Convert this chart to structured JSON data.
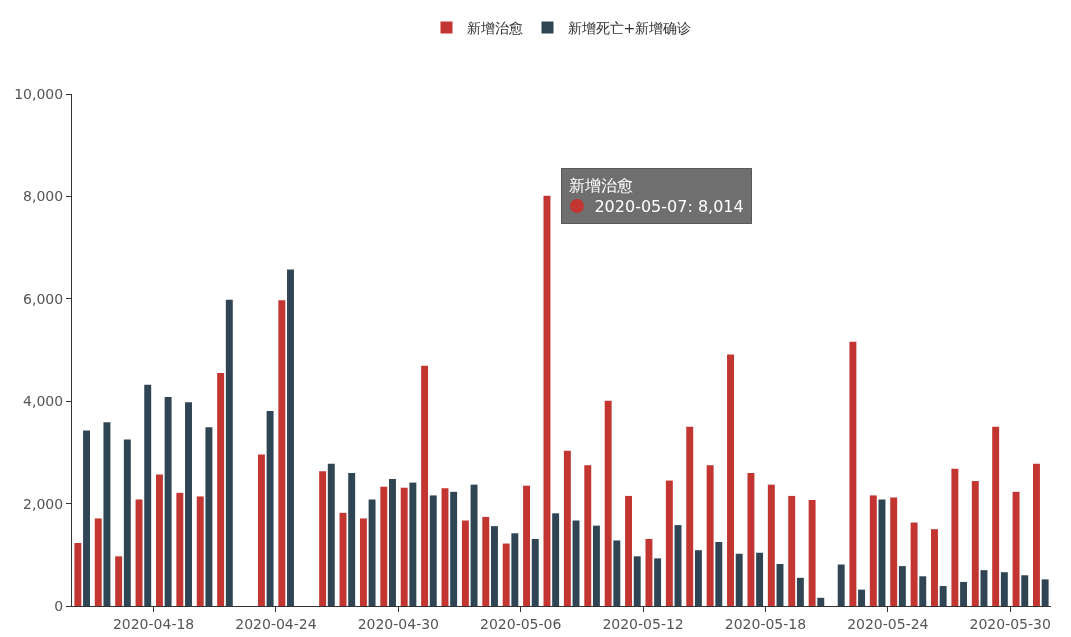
{
  "chart_data": {
    "type": "bar",
    "x": [
      "2020-04-14T12:00",
      "2020-04-15T12:00",
      "2020-04-16T12:00",
      "2020-04-17T12:00",
      "2020-04-18T12:00",
      "2020-04-19T12:00",
      "2020-04-20T12:00",
      "2020-04-21T12:00",
      "2020-04-22T12:00",
      "2020-04-23T12:00",
      "2020-04-24T12:00",
      "2020-04-25T12:00",
      "2020-04-26T12:00",
      "2020-04-27T12:00",
      "2020-04-28T12:00",
      "2020-04-29T12:00",
      "2020-04-30T12:00",
      "2020-05-01T12:00",
      "2020-05-02T12:00",
      "2020-05-03T12:00",
      "2020-05-04T12:00",
      "2020-05-05T12:00",
      "2020-05-06T12:00",
      "2020-05-07T12:00",
      "2020-05-08T12:00",
      "2020-05-09T12:00",
      "2020-05-10T12:00",
      "2020-05-11T12:00",
      "2020-05-12T12:00",
      "2020-05-13T12:00",
      "2020-05-14T12:00",
      "2020-05-15T12:00",
      "2020-05-16T12:00",
      "2020-05-17T12:00",
      "2020-05-18T12:00",
      "2020-05-19T12:00",
      "2020-05-20T12:00",
      "2020-05-21T12:00",
      "2020-05-22T12:00",
      "2020-05-23T12:00",
      "2020-05-24T12:00",
      "2020-05-25T12:00",
      "2020-05-26T12:00",
      "2020-05-27T12:00",
      "2020-05-28T12:00",
      "2020-05-29T12:00",
      "2020-05-30T12:00",
      "2020-05-31T12:00"
    ],
    "series": [
      {
        "name": "新增治愈",
        "color": "#c23531",
        "values": [
          1230,
          1710,
          970,
          2080,
          2570,
          2210,
          2140,
          4550,
          null,
          2960,
          5970,
          null,
          2630,
          1820,
          1710,
          2330,
          2310,
          4690,
          2300,
          1670,
          1740,
          1220,
          2350,
          8014,
          3030,
          2750,
          4010,
          2150,
          1310,
          2450,
          3500,
          2750,
          4910,
          2600,
          2370,
          2150,
          2070,
          null,
          5160,
          2160,
          2120,
          1630,
          1500,
          2680,
          2440,
          3500,
          2230,
          2780
        ]
      },
      {
        "name": "新增死亡+新增确诊",
        "color": "#2f4554",
        "values": [
          3430,
          3590,
          3250,
          4320,
          4080,
          3980,
          3490,
          5980,
          null,
          3810,
          6570,
          null,
          2780,
          2600,
          2080,
          2480,
          2410,
          2160,
          2230,
          2370,
          1560,
          1420,
          1310,
          1810,
          1670,
          1570,
          1280,
          970,
          930,
          1580,
          1090,
          1250,
          1020,
          1040,
          820,
          550,
          160,
          810,
          320,
          2080,
          780,
          580,
          390,
          470,
          700,
          660,
          600,
          520
        ]
      }
    ],
    "xlim": [
      "2020-04-14",
      "2020-06-01"
    ],
    "xticks": [
      "2020-04-18",
      "2020-04-24",
      "2020-04-30",
      "2020-05-06",
      "2020-05-12",
      "2020-05-18",
      "2020-05-24",
      "2020-05-30"
    ],
    "ylim": [
      0,
      10000
    ],
    "yticks": [
      0,
      {
        "value": 2000,
        "label": "2,000"
      },
      {
        "value": 4000,
        "label": "4,000"
      },
      {
        "value": 6000,
        "label": "6,000"
      },
      {
        "value": 8000,
        "label": "8,000"
      },
      {
        "value": 10000,
        "label": "10,000"
      }
    ],
    "legend": "top",
    "annotations": [
      {
        "text": "新增治愈\n2020-05-07: 8,014",
        "x": "2020-05-07T12:00",
        "y": 8014
      }
    ]
  }
}
